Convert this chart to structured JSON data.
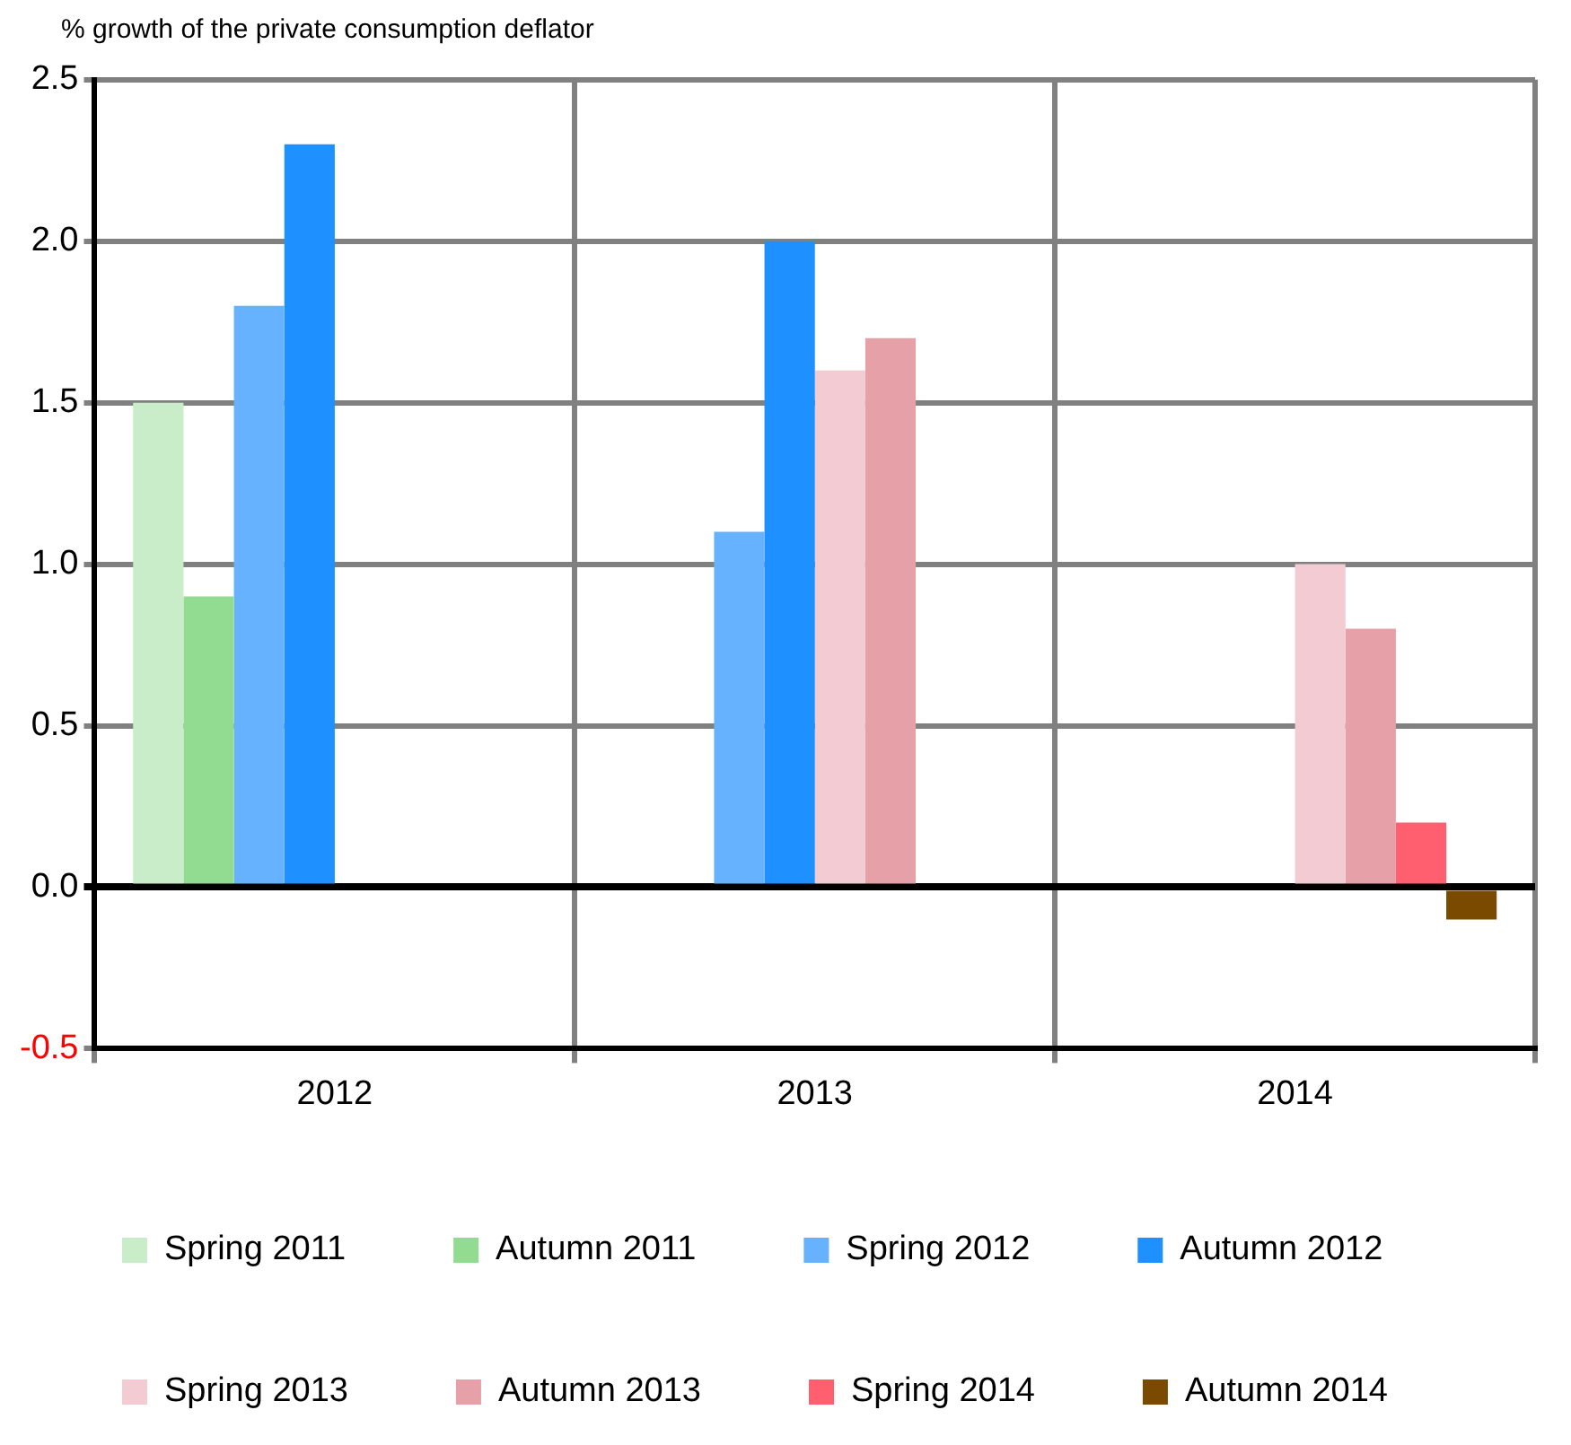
{
  "chart_data": {
    "type": "bar",
    "ylabel": "% growth of the private consumption deflator",
    "categories": [
      "2012",
      "2013",
      "2014"
    ],
    "series": [
      {
        "name": "Spring 2011",
        "color": "#c9ecc9",
        "values": [
          1.5,
          null,
          null
        ]
      },
      {
        "name": "Autumn 2011",
        "color": "#92dc92",
        "values": [
          0.9,
          null,
          null
        ]
      },
      {
        "name": "Spring 2012",
        "color": "#66b2ff",
        "values": [
          1.8,
          1.1,
          null
        ]
      },
      {
        "name": "Autumn 2012",
        "color": "#1e90ff",
        "values": [
          2.3,
          2.0,
          null
        ]
      },
      {
        "name": "Spring 2013",
        "color": "#f2ccd2",
        "values": [
          null,
          1.6,
          1.0
        ]
      },
      {
        "name": "Autumn 2013",
        "color": "#e6a0a8",
        "values": [
          null,
          1.7,
          0.8
        ]
      },
      {
        "name": "Spring 2014",
        "color": "#ff5f6e",
        "values": [
          null,
          null,
          0.2
        ]
      },
      {
        "name": "Autumn 2014",
        "color": "#7a4a00",
        "values": [
          null,
          null,
          -0.1
        ]
      }
    ],
    "ylim": [
      -0.5,
      2.5
    ],
    "yticks": [
      {
        "value": -0.5,
        "label": "-0.5"
      },
      {
        "value": 0,
        "label": "0.0"
      },
      {
        "value": 0.5,
        "label": "0.5"
      },
      {
        "value": 1,
        "label": "1.0"
      },
      {
        "value": 1.5,
        "label": "1.5"
      },
      {
        "value": 2,
        "label": "2.0"
      },
      {
        "value": 2.5,
        "label": "2.5"
      }
    ],
    "grid": true,
    "legend": "bottom"
  }
}
